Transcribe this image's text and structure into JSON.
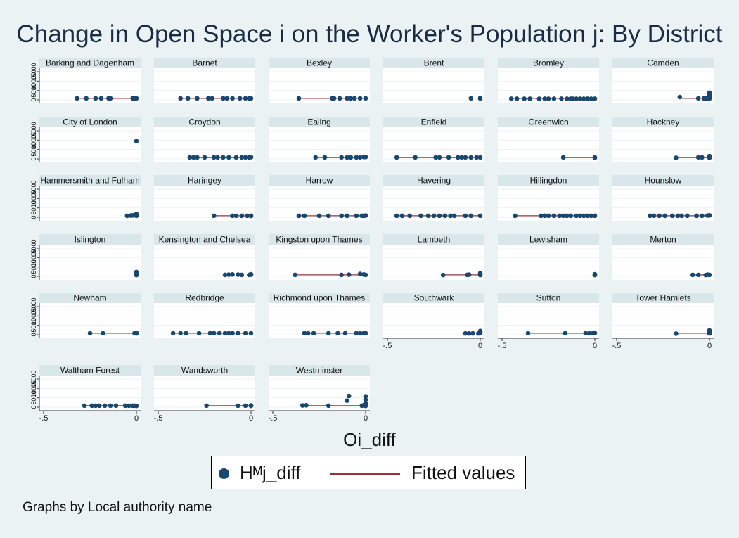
{
  "chart_data": {
    "type": "scatter",
    "title": "Change in Open Space i on the Worker's Population j: By District",
    "xlabel": "Oi_diff",
    "xlim": [
      -0.5,
      0
    ],
    "x_tick_labels": [
      "-.5",
      "0"
    ],
    "y_tick_labels": [
      "0",
      "5000",
      "10000",
      "15000"
    ],
    "ylim": [
      0,
      15000
    ],
    "legend": {
      "placement": "bottom",
      "entries": [
        "Hᴹj_diff",
        "Fitted values"
      ]
    },
    "note": "Graphs by Local authority name",
    "colors": {
      "marker": "#1a476f",
      "fit_line": "#90353b",
      "header": "#d9e6ea",
      "background": "#eaf2f3"
    },
    "panels": [
      {
        "name": "Barking and Dagenham",
        "x": [
          -0.32,
          -0.27,
          -0.22,
          -0.19,
          -0.15,
          -0.14,
          -0.02,
          -0.01,
          0
        ],
        "y": [
          800,
          800,
          800,
          800,
          800,
          800,
          800,
          800,
          800
        ],
        "fit": [
          -0.32,
          0
        ]
      },
      {
        "name": "Barnet",
        "x": [
          -0.38,
          -0.34,
          -0.29,
          -0.23,
          -0.21,
          -0.15,
          -0.13,
          -0.1,
          -0.06,
          -0.03,
          -0.01,
          0
        ],
        "y": [
          800,
          800,
          800,
          800,
          800,
          800,
          800,
          800,
          800,
          800,
          800,
          800
        ],
        "fit": [
          -0.38,
          0
        ]
      },
      {
        "name": "Bexley",
        "x": [
          -0.36,
          -0.18,
          -0.17,
          -0.14,
          -0.1,
          -0.08,
          -0.06,
          -0.03,
          0
        ],
        "y": [
          800,
          800,
          800,
          800,
          800,
          800,
          800,
          800,
          800
        ],
        "fit": [
          -0.36,
          0
        ]
      },
      {
        "name": "Brent",
        "x": [
          -0.05,
          0,
          0
        ],
        "y": [
          800,
          700,
          1000
        ],
        "fit": null
      },
      {
        "name": "Bromley",
        "x": [
          -0.45,
          -0.42,
          -0.38,
          -0.35,
          -0.3,
          -0.27,
          -0.25,
          -0.22,
          -0.18,
          -0.15,
          -0.13,
          -0.12,
          -0.1,
          -0.08,
          -0.06,
          -0.04,
          -0.02,
          0
        ],
        "y": [
          600,
          600,
          600,
          600,
          600,
          600,
          600,
          600,
          600,
          600,
          600,
          600,
          600,
          600,
          600,
          600,
          600,
          600
        ],
        "fit": [
          -0.45,
          0
        ]
      },
      {
        "name": "Camden",
        "x": [
          -0.16,
          -0.06,
          -0.03,
          0,
          0,
          0,
          0,
          0,
          0,
          -0.02,
          -0.01
        ],
        "y": [
          1500,
          800,
          800,
          700,
          1000,
          1500,
          2200,
          3000,
          3800,
          800,
          800
        ],
        "fit": [
          -0.16,
          0
        ]
      },
      {
        "name": "City of London",
        "x": [
          0
        ],
        "y": [
          9500
        ],
        "fit": null
      },
      {
        "name": "Croydon",
        "x": [
          -0.33,
          -0.31,
          -0.29,
          -0.25,
          -0.2,
          -0.18,
          -0.15,
          -0.12,
          -0.08,
          -0.05,
          -0.03,
          -0.01,
          0
        ],
        "y": [
          800,
          800,
          800,
          800,
          800,
          800,
          800,
          800,
          800,
          800,
          800,
          800,
          900
        ],
        "fit": [
          -0.33,
          0
        ]
      },
      {
        "name": "Ealing",
        "x": [
          -0.27,
          -0.22,
          -0.13,
          -0.1,
          -0.08,
          -0.05,
          -0.03,
          -0.01,
          0
        ],
        "y": [
          800,
          800,
          800,
          800,
          800,
          800,
          800,
          1000,
          1000
        ],
        "fit": [
          -0.27,
          0
        ]
      },
      {
        "name": "Enfield",
        "x": [
          -0.45,
          -0.35,
          -0.24,
          -0.22,
          -0.17,
          -0.12,
          -0.1,
          -0.08,
          -0.05,
          -0.02,
          0
        ],
        "y": [
          800,
          800,
          800,
          800,
          800,
          800,
          800,
          800,
          800,
          800,
          800
        ],
        "fit": [
          -0.45,
          0
        ]
      },
      {
        "name": "Greenwich",
        "x": [
          -0.17,
          0,
          0
        ],
        "y": [
          800,
          800,
          600
        ],
        "fit": [
          -0.17,
          0
        ]
      },
      {
        "name": "Hackney",
        "x": [
          -0.18,
          -0.06,
          -0.04,
          0,
          0,
          0
        ],
        "y": [
          600,
          800,
          800,
          600,
          1000,
          1500
        ],
        "fit": [
          -0.18,
          0
        ]
      },
      {
        "name": "Hammersmith and Fulham",
        "x": [
          -0.05,
          -0.03,
          -0.02,
          0,
          0,
          0
        ],
        "y": [
          800,
          900,
          1000,
          800,
          1200,
          1700
        ],
        "fit": null
      },
      {
        "name": "Haringey",
        "x": [
          -0.2,
          -0.1,
          -0.08,
          -0.05,
          -0.02,
          0,
          0
        ],
        "y": [
          800,
          800,
          800,
          800,
          800,
          800,
          700
        ],
        "fit": [
          -0.2,
          0
        ]
      },
      {
        "name": "Harrow",
        "x": [
          -0.36,
          -0.33,
          -0.25,
          -0.2,
          -0.13,
          -0.1,
          -0.05,
          -0.02,
          -0.01,
          0
        ],
        "y": [
          800,
          800,
          800,
          800,
          800,
          800,
          800,
          800,
          800,
          900
        ],
        "fit": [
          -0.36,
          0
        ]
      },
      {
        "name": "Havering",
        "x": [
          -0.45,
          -0.42,
          -0.38,
          -0.32,
          -0.28,
          -0.25,
          -0.22,
          -0.19,
          -0.16,
          -0.14,
          -0.08,
          -0.05,
          0
        ],
        "y": [
          800,
          800,
          800,
          800,
          800,
          800,
          800,
          800,
          800,
          800,
          800,
          800,
          800
        ],
        "fit": [
          -0.45,
          0
        ]
      },
      {
        "name": "Hillingdon",
        "x": [
          -0.43,
          -0.29,
          -0.27,
          -0.25,
          -0.22,
          -0.19,
          -0.17,
          -0.15,
          -0.13,
          -0.1,
          -0.08,
          -0.06,
          -0.04,
          -0.02,
          0
        ],
        "y": [
          800,
          800,
          800,
          800,
          800,
          800,
          800,
          800,
          800,
          800,
          800,
          800,
          800,
          800,
          800
        ],
        "fit": [
          -0.43,
          0
        ]
      },
      {
        "name": "Hounslow",
        "x": [
          -0.32,
          -0.3,
          -0.27,
          -0.24,
          -0.2,
          -0.17,
          -0.15,
          -0.12,
          -0.07,
          -0.04,
          -0.01,
          0
        ],
        "y": [
          800,
          800,
          800,
          800,
          800,
          800,
          800,
          800,
          800,
          800,
          900,
          1000
        ],
        "fit": [
          -0.32,
          0
        ]
      },
      {
        "name": "Islington",
        "x": [
          0,
          0,
          0,
          0,
          0
        ],
        "y": [
          700,
          1100,
          1500,
          1900,
          2300
        ],
        "fit": null
      },
      {
        "name": "Kensington and Chelsea",
        "x": [
          -0.14,
          -0.12,
          -0.1,
          -0.07,
          -0.05,
          -0.01,
          0,
          0
        ],
        "y": [
          800,
          900,
          1000,
          900,
          800,
          800,
          900,
          1100
        ],
        "fit": null
      },
      {
        "name": "Kingston upon Thames",
        "x": [
          -0.38,
          -0.13,
          -0.09,
          -0.03,
          -0.01,
          0
        ],
        "y": [
          800,
          800,
          900,
          1300,
          1000,
          800
        ],
        "fit": [
          -0.38,
          0
        ]
      },
      {
        "name": "Lambeth",
        "x": [
          -0.2,
          -0.07,
          -0.06,
          0,
          0,
          0
        ],
        "y": [
          700,
          800,
          900,
          700,
          1200,
          1700
        ],
        "fit": [
          -0.2,
          0
        ]
      },
      {
        "name": "Lewisham",
        "x": [
          0,
          0,
          0
        ],
        "y": [
          700,
          900,
          1100
        ],
        "fit": null
      },
      {
        "name": "Merton",
        "x": [
          -0.09,
          -0.06,
          -0.02,
          0,
          -0.01
        ],
        "y": [
          800,
          800,
          700,
          800,
          900
        ],
        "fit": [
          -0.09,
          0
        ]
      },
      {
        "name": "Newham",
        "x": [
          -0.25,
          -0.18,
          -0.01,
          0,
          0
        ],
        "y": [
          800,
          800,
          800,
          700,
          1000
        ],
        "fit": [
          -0.25,
          0
        ]
      },
      {
        "name": "Redbridge",
        "x": [
          -0.42,
          -0.38,
          -0.35,
          -0.28,
          -0.22,
          -0.2,
          -0.17,
          -0.14,
          -0.12,
          -0.1,
          -0.07,
          -0.03,
          0
        ],
        "y": [
          800,
          800,
          800,
          800,
          800,
          800,
          800,
          800,
          800,
          800,
          800,
          800,
          800
        ],
        "fit": [
          -0.42,
          0
        ]
      },
      {
        "name": "Richmond upon Thames",
        "x": [
          -0.33,
          -0.31,
          -0.28,
          -0.2,
          -0.15,
          -0.11,
          -0.05,
          -0.03,
          -0.01,
          0
        ],
        "y": [
          800,
          800,
          800,
          800,
          800,
          800,
          800,
          800,
          800,
          800
        ],
        "fit": [
          -0.33,
          0
        ]
      },
      {
        "name": "Southwark",
        "x": [
          -0.08,
          -0.06,
          -0.04,
          -0.01,
          0,
          0,
          0
        ],
        "y": [
          700,
          700,
          700,
          700,
          900,
          1400,
          2000
        ],
        "fit": null
      },
      {
        "name": "Sutton",
        "x": [
          -0.36,
          -0.16,
          -0.05,
          -0.03,
          -0.01,
          0
        ],
        "y": [
          800,
          800,
          800,
          800,
          800,
          900
        ],
        "fit": [
          -0.36,
          0
        ]
      },
      {
        "name": "Tower Hamlets",
        "x": [
          -0.18,
          0,
          0,
          0,
          0
        ],
        "y": [
          600,
          700,
          1200,
          1700,
          2300
        ],
        "fit": [
          -0.18,
          0
        ]
      },
      {
        "name": "Waltham Forest",
        "x": [
          -0.28,
          -0.24,
          -0.22,
          -0.2,
          -0.17,
          -0.14,
          -0.11,
          -0.06,
          -0.04,
          -0.02,
          -0.01,
          0
        ],
        "y": [
          800,
          800,
          800,
          800,
          800,
          800,
          800,
          800,
          800,
          800,
          800,
          700
        ],
        "fit": [
          -0.28,
          0
        ]
      },
      {
        "name": "Wandsworth",
        "x": [
          -0.24,
          -0.07,
          -0.03,
          0,
          0
        ],
        "y": [
          800,
          800,
          800,
          700,
          900
        ],
        "fit": [
          -0.24,
          0
        ]
      },
      {
        "name": "Westminster",
        "x": [
          -0.34,
          -0.32,
          -0.2,
          -0.1,
          -0.09,
          -0.02,
          -0.01,
          0,
          0,
          0,
          0,
          0
        ],
        "y": [
          900,
          1000,
          800,
          3500,
          6000,
          800,
          1100,
          1500,
          2100,
          4000,
          5800,
          700
        ],
        "fit": [
          -0.33,
          0
        ]
      }
    ]
  }
}
